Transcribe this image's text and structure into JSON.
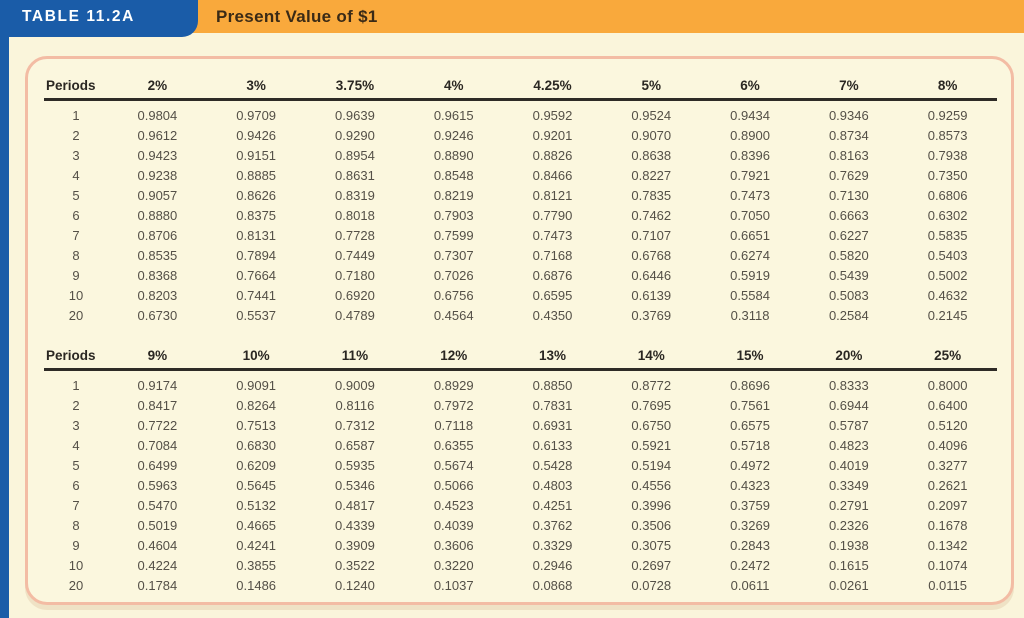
{
  "header": {
    "tab_label": "TABLE 11.2A",
    "title": "Present Value of $1"
  },
  "colors": {
    "tab_blue": "#1A5CA8",
    "banner_orange": "#F9A93C",
    "page_cream": "#FAF5DB",
    "panel_border_salmon": "#F3BCA4",
    "header_rule_dark": "#2E2B26",
    "header_text": "#2A2722",
    "data_text": "#545047",
    "tab_text": "#FFFFFF"
  },
  "chart_data": {
    "type": "table",
    "title": "Present Value of $1",
    "sections": [
      {
        "columns": [
          "Periods",
          "2%",
          "3%",
          "3.75%",
          "4%",
          "4.25%",
          "5%",
          "6%",
          "7%",
          "8%"
        ],
        "rows": [
          [
            "1",
            "0.9804",
            "0.9709",
            "0.9639",
            "0.9615",
            "0.9592",
            "0.9524",
            "0.9434",
            "0.9346",
            "0.9259"
          ],
          [
            "2",
            "0.9612",
            "0.9426",
            "0.9290",
            "0.9246",
            "0.9201",
            "0.9070",
            "0.8900",
            "0.8734",
            "0.8573"
          ],
          [
            "3",
            "0.9423",
            "0.9151",
            "0.8954",
            "0.8890",
            "0.8826",
            "0.8638",
            "0.8396",
            "0.8163",
            "0.7938"
          ],
          [
            "4",
            "0.9238",
            "0.8885",
            "0.8631",
            "0.8548",
            "0.8466",
            "0.8227",
            "0.7921",
            "0.7629",
            "0.7350"
          ],
          [
            "5",
            "0.9057",
            "0.8626",
            "0.8319",
            "0.8219",
            "0.8121",
            "0.7835",
            "0.7473",
            "0.7130",
            "0.6806"
          ],
          [
            "6",
            "0.8880",
            "0.8375",
            "0.8018",
            "0.7903",
            "0.7790",
            "0.7462",
            "0.7050",
            "0.6663",
            "0.6302"
          ],
          [
            "7",
            "0.8706",
            "0.8131",
            "0.7728",
            "0.7599",
            "0.7473",
            "0.7107",
            "0.6651",
            "0.6227",
            "0.5835"
          ],
          [
            "8",
            "0.8535",
            "0.7894",
            "0.7449",
            "0.7307",
            "0.7168",
            "0.6768",
            "0.6274",
            "0.5820",
            "0.5403"
          ],
          [
            "9",
            "0.8368",
            "0.7664",
            "0.7180",
            "0.7026",
            "0.6876",
            "0.6446",
            "0.5919",
            "0.5439",
            "0.5002"
          ],
          [
            "10",
            "0.8203",
            "0.7441",
            "0.6920",
            "0.6756",
            "0.6595",
            "0.6139",
            "0.5584",
            "0.5083",
            "0.4632"
          ],
          [
            "20",
            "0.6730",
            "0.5537",
            "0.4789",
            "0.4564",
            "0.4350",
            "0.3769",
            "0.3118",
            "0.2584",
            "0.2145"
          ]
        ]
      },
      {
        "columns": [
          "Periods",
          "9%",
          "10%",
          "11%",
          "12%",
          "13%",
          "14%",
          "15%",
          "20%",
          "25%"
        ],
        "rows": [
          [
            "1",
            "0.9174",
            "0.9091",
            "0.9009",
            "0.8929",
            "0.8850",
            "0.8772",
            "0.8696",
            "0.8333",
            "0.8000"
          ],
          [
            "2",
            "0.8417",
            "0.8264",
            "0.8116",
            "0.7972",
            "0.7831",
            "0.7695",
            "0.7561",
            "0.6944",
            "0.6400"
          ],
          [
            "3",
            "0.7722",
            "0.7513",
            "0.7312",
            "0.7118",
            "0.6931",
            "0.6750",
            "0.6575",
            "0.5787",
            "0.5120"
          ],
          [
            "4",
            "0.7084",
            "0.6830",
            "0.6587",
            "0.6355",
            "0.6133",
            "0.5921",
            "0.5718",
            "0.4823",
            "0.4096"
          ],
          [
            "5",
            "0.6499",
            "0.6209",
            "0.5935",
            "0.5674",
            "0.5428",
            "0.5194",
            "0.4972",
            "0.4019",
            "0.3277"
          ],
          [
            "6",
            "0.5963",
            "0.5645",
            "0.5346",
            "0.5066",
            "0.4803",
            "0.4556",
            "0.4323",
            "0.3349",
            "0.2621"
          ],
          [
            "7",
            "0.5470",
            "0.5132",
            "0.4817",
            "0.4523",
            "0.4251",
            "0.3996",
            "0.3759",
            "0.2791",
            "0.2097"
          ],
          [
            "8",
            "0.5019",
            "0.4665",
            "0.4339",
            "0.4039",
            "0.3762",
            "0.3506",
            "0.3269",
            "0.2326",
            "0.1678"
          ],
          [
            "9",
            "0.4604",
            "0.4241",
            "0.3909",
            "0.3606",
            "0.3329",
            "0.3075",
            "0.2843",
            "0.1938",
            "0.1342"
          ],
          [
            "10",
            "0.4224",
            "0.3855",
            "0.3522",
            "0.3220",
            "0.2946",
            "0.2697",
            "0.2472",
            "0.1615",
            "0.1074"
          ],
          [
            "20",
            "0.1784",
            "0.1486",
            "0.1240",
            "0.1037",
            "0.0868",
            "0.0728",
            "0.0611",
            "0.0261",
            "0.0115"
          ]
        ]
      }
    ]
  }
}
